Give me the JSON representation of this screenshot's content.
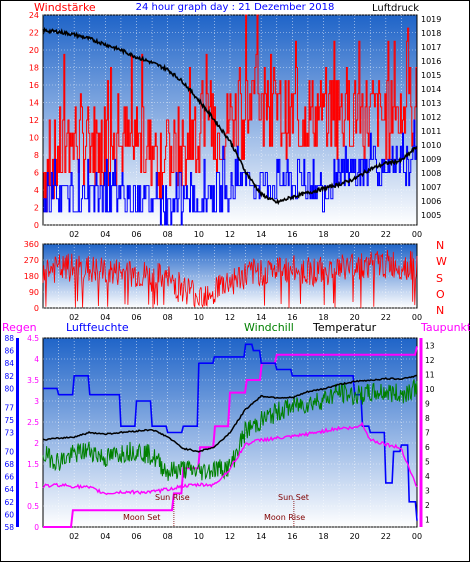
{
  "colors": {
    "wind": "#ff0000",
    "wind_gust": "#0000ff",
    "pressure": "#000000",
    "wind_direction": "#ff0000",
    "rain": "#ff00ff",
    "humidity": "#0000ff",
    "windchill": "#008000",
    "temperature": "#000000",
    "dewpoint": "#ff00ff",
    "moon": "#cc0066",
    "sun_rise_set": "#800000",
    "axis_text_left": "#ff0000",
    "title": "#0000ff",
    "plot_bg_top": "#1f64c8",
    "plot_bg_bottom": "#ffffff",
    "grid": "#ffffff"
  },
  "chart_data": [
    {
      "type": "line",
      "title": "24 hour graph day : 21 Dezember 2018",
      "left_label": "Windstärke",
      "right_label": "Luftdruck",
      "x_ticks": [
        "02",
        "04",
        "06",
        "08",
        "10",
        "12",
        "14",
        "16",
        "18",
        "20",
        "22",
        "00"
      ],
      "y_left_ticks": [
        "0",
        "2",
        "4",
        "6",
        "8",
        "10",
        "12",
        "14",
        "16",
        "18",
        "20",
        "22",
        "24"
      ],
      "y_left_range": [
        0,
        24
      ],
      "y_right_ticks": [
        "1005",
        "1006",
        "1007",
        "1008",
        "1009",
        "1010",
        "1011",
        "1012",
        "1013",
        "1014",
        "1015",
        "1016",
        "1017",
        "1018",
        "1019"
      ],
      "y_right_range": [
        1004.3,
        1019.3
      ],
      "grid": true,
      "series": [
        {
          "name": "Windstärke",
          "axis": "left",
          "x": [
            0,
            2,
            4,
            6,
            8,
            10,
            12,
            14,
            16,
            18,
            20,
            22,
            24
          ],
          "values": [
            6,
            10,
            9,
            9,
            8,
            9,
            12,
            14,
            12,
            13,
            13,
            12,
            14
          ]
        },
        {
          "name": "",
          "axis": "left",
          "x": [
            0,
            2,
            4,
            6,
            8,
            10,
            12,
            14,
            16,
            18,
            20,
            22,
            24
          ],
          "values": [
            3,
            3,
            3,
            3,
            2,
            3,
            4,
            5,
            5,
            4,
            6,
            6,
            7
          ]
        },
        {
          "name": "Luftdruck",
          "axis": "right",
          "x": [
            0,
            1,
            2,
            3,
            4,
            5,
            6,
            7,
            8,
            9,
            10,
            11,
            12,
            13,
            14,
            15,
            16,
            17,
            18,
            19,
            20,
            21,
            22,
            23,
            24
          ],
          "values": [
            1018.2,
            1018.1,
            1017.9,
            1017.6,
            1017.2,
            1016.8,
            1016.3,
            1015.9,
            1015.4,
            1014.5,
            1013.2,
            1011.8,
            1010.3,
            1008.1,
            1006.5,
            1005.9,
            1006.3,
            1006.6,
            1006.9,
            1007.2,
            1007.6,
            1008.3,
            1008.7,
            1008.9,
            1009.9
          ]
        }
      ]
    },
    {
      "type": "scatter",
      "right_labels": [
        "N",
        "W",
        "S",
        "O",
        "N"
      ],
      "x_ticks": [
        "02",
        "04",
        "06",
        "08",
        "10",
        "12",
        "14",
        "16",
        "18",
        "20",
        "22",
        "00"
      ],
      "y_ticks": [
        "0",
        "90",
        "180",
        "270",
        "360"
      ],
      "y_range": [
        0,
        360
      ],
      "grid": true,
      "series": [
        {
          "name": "",
          "x": [
            0,
            2,
            4,
            6,
            8,
            10,
            12,
            14,
            16,
            18,
            20,
            22,
            24
          ],
          "values": [
            215,
            225,
            200,
            190,
            160,
            70,
            150,
            210,
            215,
            205,
            240,
            245,
            235
          ]
        }
      ]
    },
    {
      "type": "line",
      "labels": [
        "Regen",
        "Luftfeuchte",
        "Windchill",
        "Temperatur",
        "Taupunkt"
      ],
      "x_ticks": [
        "02",
        "04",
        "06",
        "08",
        "10",
        "12",
        "14",
        "16",
        "18",
        "20",
        "22",
        "00"
      ],
      "y_rain_ticks": [
        "0",
        "0.5",
        "1",
        "1.5",
        "2",
        "2.5",
        "3",
        "3.5",
        "4",
        "4.5"
      ],
      "y_rain_range": [
        0,
        4.5
      ],
      "y_humidity_ticks": [
        "58",
        "60",
        "62",
        "64",
        "66",
        "68",
        "70",
        "73",
        "75",
        "77",
        "80",
        "82",
        "84",
        "86",
        "88"
      ],
      "y_humidity_range": [
        58,
        88
      ],
      "y_temp_ticks": [
        "1",
        "2",
        "3",
        "4",
        "5",
        "6",
        "7",
        "8",
        "9",
        "10",
        "11",
        "12",
        "13"
      ],
      "y_temp_range": [
        0.5,
        13.5
      ],
      "grid": true,
      "annotations": [
        "Moon Set",
        "Sun Rise",
        "Sun Set",
        "Moon Rise"
      ],
      "series": [
        {
          "name": "Regen",
          "x": [
            0,
            1,
            1.9,
            3,
            4,
            5,
            6,
            7,
            8,
            8.3,
            9,
            10,
            11,
            12,
            13,
            14,
            15,
            16,
            17,
            18,
            19,
            20,
            21,
            22,
            23,
            23.9,
            24
          ],
          "values": [
            0,
            0,
            0.4,
            0.4,
            0.4,
            0.4,
            0.4,
            0.4,
            0.4,
            0.8,
            1.4,
            1.9,
            2.4,
            3.2,
            3.5,
            3.9,
            4.1,
            4.1,
            4.1,
            4.1,
            4.1,
            4.1,
            4.1,
            4.1,
            4.1,
            4.3,
            4.3
          ]
        },
        {
          "name": "Luftfeuchte",
          "x": [
            0,
            1,
            2,
            3,
            4,
            5,
            6,
            7,
            8,
            9,
            10,
            11,
            12,
            13,
            13.5,
            14,
            15,
            16,
            17,
            18,
            19,
            20,
            20.5,
            21,
            22,
            22.5,
            23,
            23.5,
            24
          ],
          "values": [
            80,
            79,
            82,
            79,
            79,
            74,
            78,
            74,
            73,
            74,
            84,
            85,
            85,
            87,
            86,
            84,
            83,
            82,
            82,
            82,
            82,
            79,
            74,
            73,
            65,
            70,
            71,
            62,
            59
          ]
        },
        {
          "name": "Windchill",
          "x": [
            0,
            1,
            2,
            3,
            4,
            5,
            6,
            7,
            8,
            9,
            10,
            11,
            12,
            13,
            14,
            15,
            16,
            17,
            18,
            19,
            20,
            21,
            22,
            23,
            24
          ],
          "values": [
            5.5,
            5.0,
            5.5,
            5.8,
            5.2,
            5.6,
            5.8,
            5.4,
            4.3,
            4.5,
            4.3,
            4.5,
            4.6,
            7.1,
            7.8,
            8.4,
            8.8,
            9.0,
            9.3,
            9.8,
            9.5,
            9.7,
            9.8,
            9.6,
            10.2
          ]
        },
        {
          "name": "Temperatur",
          "x": [
            0,
            1,
            2,
            3,
            4,
            5,
            6,
            7,
            8,
            9,
            10,
            11,
            12,
            13,
            14,
            15,
            16,
            17,
            18,
            19,
            20,
            21,
            22,
            23,
            24
          ],
          "values": [
            6.5,
            6.6,
            6.7,
            7.0,
            6.9,
            7.0,
            7.1,
            7.2,
            6.7,
            5.9,
            5.7,
            6.0,
            7.0,
            8.6,
            9.5,
            9.4,
            9.4,
            9.8,
            10.0,
            10.3,
            10.5,
            10.6,
            10.7,
            10.7,
            10.9
          ]
        },
        {
          "name": "Taupunkt",
          "x": [
            0,
            1,
            2,
            3,
            4,
            5,
            6,
            7,
            8,
            9,
            10,
            11,
            12,
            13,
            14,
            15,
            16,
            17,
            18,
            19,
            20,
            20.5,
            21,
            22,
            23,
            24
          ],
          "values": [
            3.3,
            3.4,
            3.3,
            3.2,
            2.8,
            2.9,
            2.9,
            2.9,
            3.1,
            3.3,
            3.4,
            3.4,
            4.5,
            6.2,
            6.5,
            6.6,
            6.7,
            6.9,
            7.1,
            7.3,
            7.3,
            7.6,
            6.5,
            6.2,
            5.9,
            3.2
          ]
        }
      ]
    }
  ]
}
